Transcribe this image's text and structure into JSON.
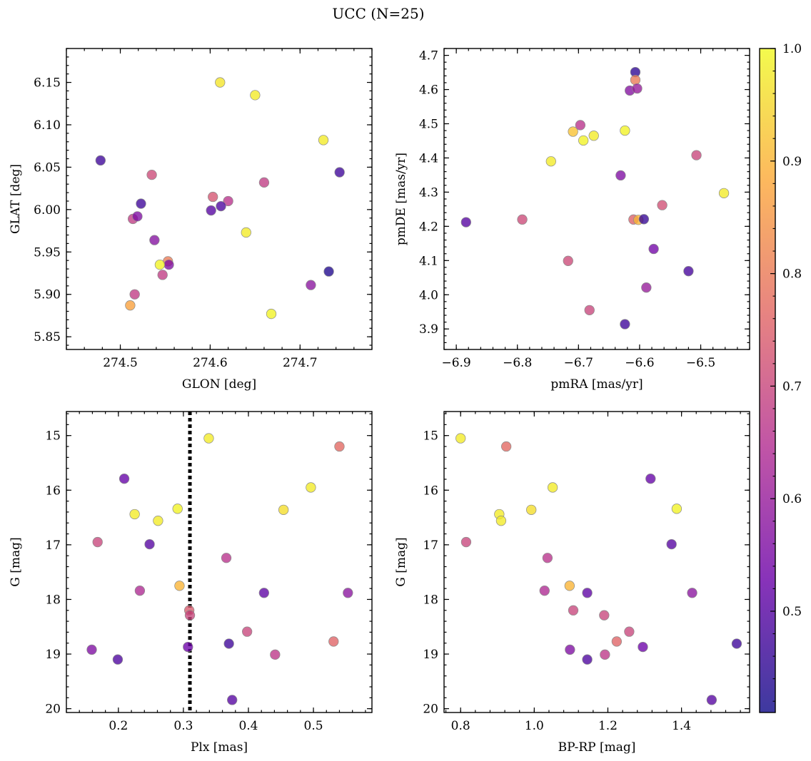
{
  "title": "UCC (N=25)",
  "colors": {
    "colormap": [
      "#0d0887",
      "#6a00a8",
      "#b12a90",
      "#e16462",
      "#fca636",
      "#f0f921"
    ],
    "point_alpha": 0.78,
    "point_edge": "#8a8a8a",
    "plx_line": "#000000"
  },
  "colorbar": {
    "min": 0.41,
    "max": 1.0,
    "ticks": [
      "0.5",
      "0.6",
      "0.7",
      "0.8",
      "0.9",
      "1.0"
    ]
  },
  "chart_data": [
    {
      "type": "scatter",
      "xlabel": "GLON [deg]",
      "ylabel": "GLAT [deg]",
      "xlim": [
        274.44,
        274.78
      ],
      "ylim": [
        5.835,
        6.19
      ],
      "y_inverted": false,
      "xticks": [
        "274.5",
        "274.6",
        "274.7"
      ],
      "yticks": [
        "5.85",
        "5.90",
        "5.95",
        "6.00",
        "6.05",
        "6.10",
        "6.15"
      ],
      "points": [
        {
          "x": 274.478,
          "y": 6.058,
          "c": 0.47
        },
        {
          "x": 274.535,
          "y": 6.041,
          "c": 0.71
        },
        {
          "x": 274.514,
          "y": 5.989,
          "c": 0.68
        },
        {
          "x": 274.519,
          "y": 5.992,
          "c": 0.56
        },
        {
          "x": 274.523,
          "y": 6.007,
          "c": 0.47
        },
        {
          "x": 274.538,
          "y": 5.964,
          "c": 0.57
        },
        {
          "x": 274.516,
          "y": 5.9,
          "c": 0.68
        },
        {
          "x": 274.511,
          "y": 5.887,
          "c": 0.87
        },
        {
          "x": 274.553,
          "y": 5.939,
          "c": 0.8
        },
        {
          "x": 274.554,
          "y": 5.935,
          "c": 0.56
        },
        {
          "x": 274.544,
          "y": 5.935,
          "c": 0.99
        },
        {
          "x": 274.547,
          "y": 5.923,
          "c": 0.68
        },
        {
          "x": 274.611,
          "y": 6.15,
          "c": 0.97
        },
        {
          "x": 274.65,
          "y": 6.135,
          "c": 0.98
        },
        {
          "x": 274.603,
          "y": 6.015,
          "c": 0.73
        },
        {
          "x": 274.62,
          "y": 6.01,
          "c": 0.66
        },
        {
          "x": 274.612,
          "y": 6.004,
          "c": 0.49
        },
        {
          "x": 274.601,
          "y": 5.999,
          "c": 0.5
        },
        {
          "x": 274.66,
          "y": 6.032,
          "c": 0.68
        },
        {
          "x": 274.64,
          "y": 5.973,
          "c": 0.98
        },
        {
          "x": 274.668,
          "y": 5.877,
          "c": 0.99
        },
        {
          "x": 274.726,
          "y": 6.082,
          "c": 0.98
        },
        {
          "x": 274.744,
          "y": 6.044,
          "c": 0.47
        },
        {
          "x": 274.732,
          "y": 5.927,
          "c": 0.43
        },
        {
          "x": 274.712,
          "y": 5.911,
          "c": 0.58
        }
      ]
    },
    {
      "type": "scatter",
      "xlabel": "pmRA [mas/yr]",
      "ylabel": "pmDE [mas/yr]",
      "xlim": [
        -6.92,
        -6.42
      ],
      "ylim": [
        3.84,
        4.72
      ],
      "y_inverted": false,
      "xticks": [
        "−6.9",
        "−6.8",
        "−6.7",
        "−6.6",
        "−6.5"
      ],
      "yticks": [
        "3.9",
        "4.0",
        "4.1",
        "4.2",
        "4.3",
        "4.4",
        "4.5",
        "4.6",
        "4.7"
      ],
      "points": [
        {
          "x": -6.884,
          "y": 4.212,
          "c": 0.5
        },
        {
          "x": -6.792,
          "y": 4.22,
          "c": 0.71
        },
        {
          "x": -6.745,
          "y": 4.39,
          "c": 0.98
        },
        {
          "x": -6.717,
          "y": 4.099,
          "c": 0.71
        },
        {
          "x": -6.709,
          "y": 4.477,
          "c": 0.92
        },
        {
          "x": -6.697,
          "y": 4.496,
          "c": 0.66
        },
        {
          "x": -6.692,
          "y": 4.451,
          "c": 0.99
        },
        {
          "x": -6.675,
          "y": 4.465,
          "c": 0.98
        },
        {
          "x": -6.682,
          "y": 3.955,
          "c": 0.7
        },
        {
          "x": -6.631,
          "y": 4.349,
          "c": 0.56
        },
        {
          "x": -6.624,
          "y": 4.48,
          "c": 0.99
        },
        {
          "x": -6.616,
          "y": 4.597,
          "c": 0.57
        },
        {
          "x": -6.607,
          "y": 4.651,
          "c": 0.45
        },
        {
          "x": -6.607,
          "y": 4.628,
          "c": 0.8
        },
        {
          "x": -6.604,
          "y": 4.603,
          "c": 0.6
        },
        {
          "x": -6.61,
          "y": 4.22,
          "c": 0.75
        },
        {
          "x": -6.602,
          "y": 4.219,
          "c": 0.9
        },
        {
          "x": -6.593,
          "y": 4.221,
          "c": 0.46
        },
        {
          "x": -6.624,
          "y": 3.914,
          "c": 0.47
        },
        {
          "x": -6.577,
          "y": 4.134,
          "c": 0.54
        },
        {
          "x": -6.563,
          "y": 4.262,
          "c": 0.72
        },
        {
          "x": -6.589,
          "y": 4.021,
          "c": 0.6
        },
        {
          "x": -6.52,
          "y": 4.069,
          "c": 0.48
        },
        {
          "x": -6.507,
          "y": 4.408,
          "c": 0.7
        },
        {
          "x": -6.462,
          "y": 4.297,
          "c": 0.98
        }
      ]
    },
    {
      "type": "scatter",
      "xlabel": "Plx [mas]",
      "ylabel": "G [mag]",
      "xlim": [
        0.12,
        0.59
      ],
      "ylim": [
        20.07,
        14.56
      ],
      "y_inverted": true,
      "vline": 0.31,
      "xticks": [
        "0.2",
        "0.3",
        "0.4",
        "0.5"
      ],
      "yticks": [
        "15",
        "16",
        "17",
        "18",
        "19",
        "20"
      ],
      "points": [
        {
          "x": 0.339,
          "y": 15.05,
          "c": 0.98
        },
        {
          "x": 0.54,
          "y": 15.2,
          "c": 0.77
        },
        {
          "x": 0.209,
          "y": 15.79,
          "c": 0.52
        },
        {
          "x": 0.496,
          "y": 15.95,
          "c": 0.98
        },
        {
          "x": 0.225,
          "y": 16.44,
          "c": 0.98
        },
        {
          "x": 0.261,
          "y": 16.56,
          "c": 0.98
        },
        {
          "x": 0.291,
          "y": 16.34,
          "c": 0.99
        },
        {
          "x": 0.454,
          "y": 16.36,
          "c": 0.96
        },
        {
          "x": 0.168,
          "y": 16.95,
          "c": 0.7
        },
        {
          "x": 0.248,
          "y": 16.99,
          "c": 0.5
        },
        {
          "x": 0.366,
          "y": 17.24,
          "c": 0.66
        },
        {
          "x": 0.233,
          "y": 17.84,
          "c": 0.64
        },
        {
          "x": 0.294,
          "y": 17.75,
          "c": 0.9
        },
        {
          "x": 0.424,
          "y": 17.88,
          "c": 0.51
        },
        {
          "x": 0.553,
          "y": 17.88,
          "c": 0.58
        },
        {
          "x": 0.309,
          "y": 18.2,
          "c": 0.74
        },
        {
          "x": 0.31,
          "y": 18.29,
          "c": 0.7
        },
        {
          "x": 0.398,
          "y": 18.59,
          "c": 0.7
        },
        {
          "x": 0.531,
          "y": 18.77,
          "c": 0.76
        },
        {
          "x": 0.37,
          "y": 18.81,
          "c": 0.47
        },
        {
          "x": 0.307,
          "y": 18.87,
          "c": 0.53
        },
        {
          "x": 0.159,
          "y": 18.92,
          "c": 0.56
        },
        {
          "x": 0.441,
          "y": 19.01,
          "c": 0.67
        },
        {
          "x": 0.199,
          "y": 19.1,
          "c": 0.49
        },
        {
          "x": 0.375,
          "y": 19.84,
          "c": 0.5
        }
      ]
    },
    {
      "type": "scatter",
      "xlabel": "BP-RP [mag]",
      "ylabel": "G [mag]",
      "xlim": [
        0.755,
        1.585
      ],
      "ylim": [
        20.07,
        14.56
      ],
      "y_inverted": true,
      "xticks": [
        "0.8",
        "1.0",
        "1.2",
        "1.4"
      ],
      "yticks": [
        "15",
        "16",
        "17",
        "18",
        "19",
        "20"
      ],
      "points": [
        {
          "x": 0.8,
          "y": 15.05,
          "c": 0.98
        },
        {
          "x": 0.924,
          "y": 15.2,
          "c": 0.77
        },
        {
          "x": 1.316,
          "y": 15.79,
          "c": 0.52
        },
        {
          "x": 1.05,
          "y": 15.95,
          "c": 0.98
        },
        {
          "x": 0.905,
          "y": 16.44,
          "c": 0.98
        },
        {
          "x": 0.91,
          "y": 16.56,
          "c": 0.98
        },
        {
          "x": 0.992,
          "y": 16.36,
          "c": 0.96
        },
        {
          "x": 1.387,
          "y": 16.34,
          "c": 0.99
        },
        {
          "x": 0.815,
          "y": 16.95,
          "c": 0.7
        },
        {
          "x": 1.373,
          "y": 16.99,
          "c": 0.5
        },
        {
          "x": 1.036,
          "y": 17.24,
          "c": 0.66
        },
        {
          "x": 1.028,
          "y": 17.84,
          "c": 0.64
        },
        {
          "x": 1.096,
          "y": 17.75,
          "c": 0.9
        },
        {
          "x": 1.144,
          "y": 17.88,
          "c": 0.51
        },
        {
          "x": 1.429,
          "y": 17.88,
          "c": 0.58
        },
        {
          "x": 1.106,
          "y": 18.2,
          "c": 0.7
        },
        {
          "x": 1.19,
          "y": 18.29,
          "c": 0.7
        },
        {
          "x": 1.258,
          "y": 18.59,
          "c": 0.7
        },
        {
          "x": 1.224,
          "y": 18.77,
          "c": 0.76
        },
        {
          "x": 1.55,
          "y": 18.81,
          "c": 0.47
        },
        {
          "x": 1.295,
          "y": 18.87,
          "c": 0.53
        },
        {
          "x": 1.097,
          "y": 18.92,
          "c": 0.56
        },
        {
          "x": 1.192,
          "y": 19.01,
          "c": 0.67
        },
        {
          "x": 1.144,
          "y": 19.1,
          "c": 0.49
        },
        {
          "x": 1.482,
          "y": 19.84,
          "c": 0.5
        }
      ]
    }
  ]
}
